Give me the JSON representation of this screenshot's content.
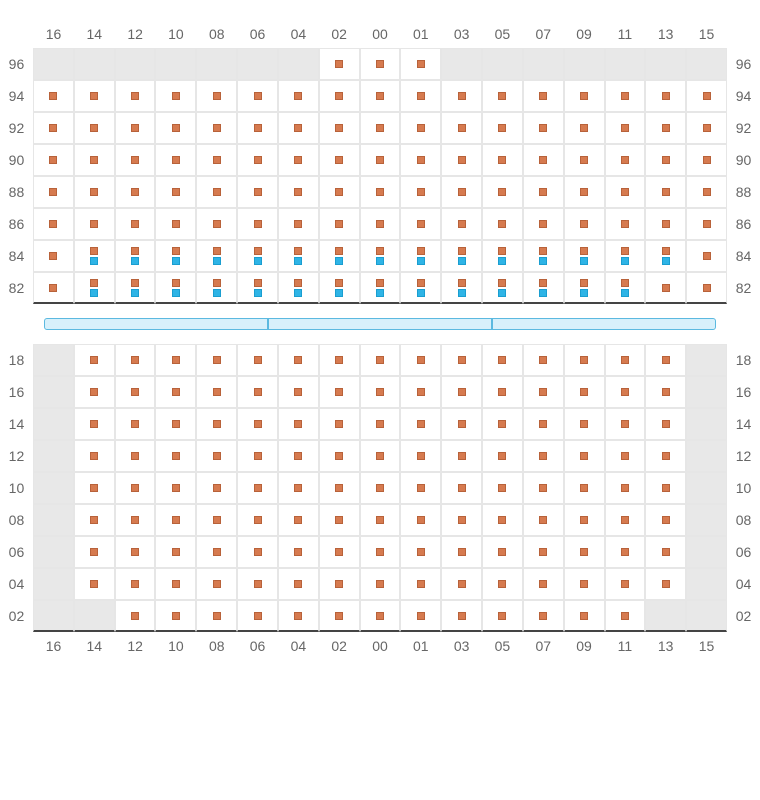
{
  "columns": [
    "16",
    "14",
    "12",
    "10",
    "08",
    "06",
    "04",
    "02",
    "00",
    "01",
    "03",
    "05",
    "07",
    "09",
    "11",
    "13",
    "15"
  ],
  "marker_color": "#d67a4f",
  "marker_border": "#b8623a",
  "bench_color": "#2eb4e6",
  "bench_border": "#1a9ed0",
  "blocked_bg": "#e8e8e8",
  "cell_border": "#e6e6e6",
  "strip_bg": "#d7f0fb",
  "strip_border": "#5bb9e0",
  "top_section": {
    "rows": [
      {
        "label": "96",
        "cells": [
          "blocked",
          "blocked",
          "blocked",
          "blocked",
          "blocked",
          "blocked",
          "blocked",
          "seat",
          "seat",
          "seat",
          "blocked",
          "blocked",
          "blocked",
          "blocked",
          "blocked",
          "blocked",
          "blocked"
        ]
      },
      {
        "label": "94",
        "cells": [
          "seat",
          "seat",
          "seat",
          "seat",
          "seat",
          "seat",
          "seat",
          "seat",
          "seat",
          "seat",
          "seat",
          "seat",
          "seat",
          "seat",
          "seat",
          "seat",
          "seat"
        ]
      },
      {
        "label": "92",
        "cells": [
          "seat",
          "seat",
          "seat",
          "seat",
          "seat",
          "seat",
          "seat",
          "seat",
          "seat",
          "seat",
          "seat",
          "seat",
          "seat",
          "seat",
          "seat",
          "seat",
          "seat"
        ]
      },
      {
        "label": "90",
        "cells": [
          "seat",
          "seat",
          "seat",
          "seat",
          "seat",
          "seat",
          "seat",
          "seat",
          "seat",
          "seat",
          "seat",
          "seat",
          "seat",
          "seat",
          "seat",
          "seat",
          "seat"
        ]
      },
      {
        "label": "88",
        "cells": [
          "seat",
          "seat",
          "seat",
          "seat",
          "seat",
          "seat",
          "seat",
          "seat",
          "seat",
          "seat",
          "seat",
          "seat",
          "seat",
          "seat",
          "seat",
          "seat",
          "seat"
        ]
      },
      {
        "label": "86",
        "cells": [
          "seat",
          "seat",
          "seat",
          "seat",
          "seat",
          "seat",
          "seat",
          "seat",
          "seat",
          "seat",
          "seat",
          "seat",
          "seat",
          "seat",
          "seat",
          "seat",
          "seat"
        ]
      },
      {
        "label": "84",
        "cells": [
          "seat",
          "seat+bench",
          "seat+bench",
          "seat+bench",
          "seat+bench",
          "seat+bench",
          "seat+bench",
          "seat+bench",
          "seat+bench",
          "seat+bench",
          "seat+bench",
          "seat+bench",
          "seat+bench",
          "seat+bench",
          "seat+bench",
          "seat+bench",
          "seat"
        ]
      },
      {
        "label": "82",
        "cells": [
          "seat",
          "seat+bench",
          "seat+bench",
          "seat+bench",
          "seat+bench",
          "seat+bench",
          "seat+bench",
          "seat+bench",
          "seat+bench",
          "seat+bench",
          "seat+bench",
          "seat+bench",
          "seat+bench",
          "seat+bench",
          "seat+bench",
          "seat",
          "seat"
        ]
      }
    ]
  },
  "bottom_section": {
    "rows": [
      {
        "label": "18",
        "cells": [
          "blocked",
          "seat",
          "seat",
          "seat",
          "seat",
          "seat",
          "seat",
          "seat",
          "seat",
          "seat",
          "seat",
          "seat",
          "seat",
          "seat",
          "seat",
          "seat",
          "blocked"
        ]
      },
      {
        "label": "16",
        "cells": [
          "blocked",
          "seat",
          "seat",
          "seat",
          "seat",
          "seat",
          "seat",
          "seat",
          "seat",
          "seat",
          "seat",
          "seat",
          "seat",
          "seat",
          "seat",
          "seat",
          "blocked"
        ]
      },
      {
        "label": "14",
        "cells": [
          "blocked",
          "seat",
          "seat",
          "seat",
          "seat",
          "seat",
          "seat",
          "seat",
          "seat",
          "seat",
          "seat",
          "seat",
          "seat",
          "seat",
          "seat",
          "seat",
          "blocked"
        ]
      },
      {
        "label": "12",
        "cells": [
          "blocked",
          "seat",
          "seat",
          "seat",
          "seat",
          "seat",
          "seat",
          "seat",
          "seat",
          "seat",
          "seat",
          "seat",
          "seat",
          "seat",
          "seat",
          "seat",
          "blocked"
        ]
      },
      {
        "label": "10",
        "cells": [
          "blocked",
          "seat",
          "seat",
          "seat",
          "seat",
          "seat",
          "seat",
          "seat",
          "seat",
          "seat",
          "seat",
          "seat",
          "seat",
          "seat",
          "seat",
          "seat",
          "blocked"
        ]
      },
      {
        "label": "08",
        "cells": [
          "blocked",
          "seat",
          "seat",
          "seat",
          "seat",
          "seat",
          "seat",
          "seat",
          "seat",
          "seat",
          "seat",
          "seat",
          "seat",
          "seat",
          "seat",
          "seat",
          "blocked"
        ]
      },
      {
        "label": "06",
        "cells": [
          "blocked",
          "seat",
          "seat",
          "seat",
          "seat",
          "seat",
          "seat",
          "seat",
          "seat",
          "seat",
          "seat",
          "seat",
          "seat",
          "seat",
          "seat",
          "seat",
          "blocked"
        ]
      },
      {
        "label": "04",
        "cells": [
          "blocked",
          "seat",
          "seat",
          "seat",
          "seat",
          "seat",
          "seat",
          "seat",
          "seat",
          "seat",
          "seat",
          "seat",
          "seat",
          "seat",
          "seat",
          "seat",
          "blocked"
        ]
      },
      {
        "label": "02",
        "cells": [
          "blocked",
          "blocked",
          "seat",
          "seat",
          "seat",
          "seat",
          "seat",
          "seat",
          "seat",
          "seat",
          "seat",
          "seat",
          "seat",
          "seat",
          "seat",
          "blocked",
          "blocked"
        ]
      }
    ]
  },
  "strip_segments": 3
}
